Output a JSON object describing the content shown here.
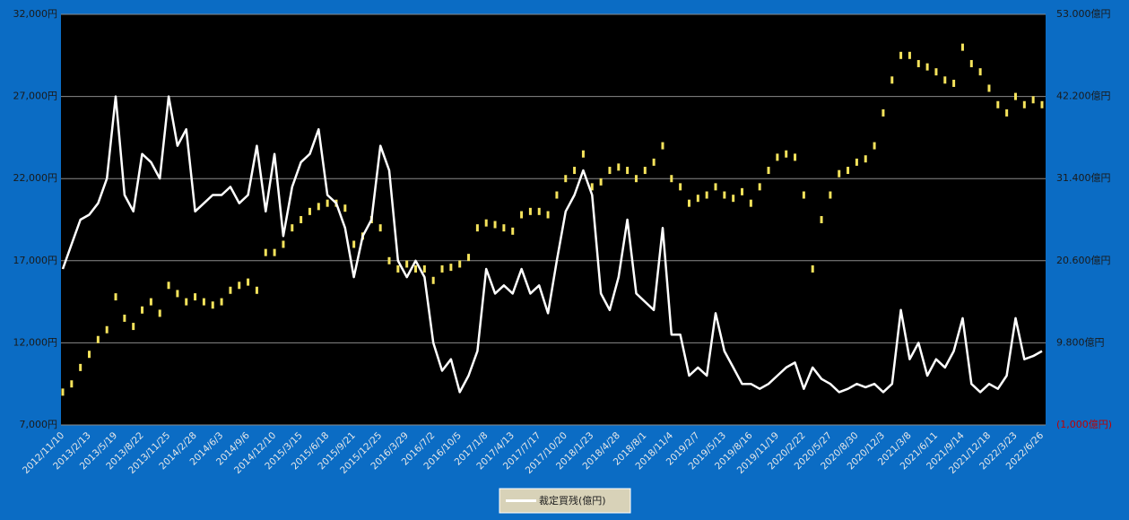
{
  "chart_data": {
    "type": "combo",
    "categories": [
      "2012/11/10",
      null,
      null,
      "2013/2/13",
      null,
      null,
      "2013/5/19",
      null,
      null,
      "2013/8/22",
      null,
      null,
      "2013/11/25",
      null,
      null,
      "2014/2/28",
      null,
      null,
      "2014/6/3",
      null,
      null,
      "2014/9/6",
      null,
      null,
      "2014/12/10",
      null,
      null,
      "2015/3/15",
      null,
      null,
      "2015/6/18",
      null,
      null,
      "2015/9/21",
      null,
      null,
      "2015/12/25",
      null,
      null,
      "2016/3/29",
      null,
      null,
      "2016/7/2",
      null,
      null,
      "2016/10/5",
      null,
      null,
      "2017/1/8",
      null,
      null,
      "2017/4/13",
      null,
      null,
      "2017/7/17",
      null,
      null,
      "2017/10/20",
      null,
      null,
      "2018/1/23",
      null,
      null,
      "2018/4/28",
      null,
      null,
      "2018/8/1",
      null,
      null,
      "2018/11/4",
      null,
      null,
      "2019/2/7",
      null,
      null,
      "2019/5/13",
      null,
      null,
      "2019/8/16",
      null,
      null,
      "2019/11/19",
      null,
      null,
      "2020/2/22",
      null,
      null,
      "2020/5/27",
      null,
      null,
      "2020/8/30",
      null,
      null,
      "2020/12/3",
      null,
      null,
      "2021/3/8",
      null,
      null,
      "2021/6/11",
      null,
      null,
      "2021/9/14",
      null,
      null,
      "2021/12/18",
      null,
      null,
      "2022/3/23",
      null,
      null,
      "2022/6/26"
    ],
    "series": [
      {
        "type": "marker",
        "color": "#f5e35c",
        "values": [
          9000,
          9500,
          10500,
          11300,
          12200,
          12800,
          14800,
          13500,
          13000,
          14000,
          14500,
          13800,
          15500,
          15000,
          14500,
          14800,
          14500,
          14300,
          14500,
          15200,
          15500,
          15700,
          15200,
          17500,
          17500,
          18000,
          19000,
          19500,
          20000,
          20300,
          20500,
          20500,
          20200,
          18000,
          18500,
          19500,
          19000,
          17000,
          16500,
          16800,
          16500,
          16500,
          15800,
          16500,
          16600,
          16800,
          17200,
          19000,
          19300,
          19200,
          19000,
          18800,
          19800,
          20000,
          20000,
          19800,
          21000,
          22000,
          22500,
          23500,
          21500,
          21800,
          22500,
          22700,
          22500,
          22000,
          22500,
          23000,
          24000,
          22000,
          21500,
          20500,
          20800,
          21000,
          21500,
          21000,
          20800,
          21200,
          20500,
          21500,
          22500,
          23300,
          23500,
          23300,
          21000,
          16500,
          19500,
          21000,
          22300,
          22500,
          23000,
          23200,
          24000,
          26000,
          28000,
          29500,
          29500,
          29000,
          28800,
          28500,
          28000,
          27800,
          30000,
          29000,
          28500,
          27500,
          26500,
          26000,
          27000,
          26500,
          26800,
          26500
        ]
      },
      {
        "type": "line",
        "name": "裁定買残(億円)",
        "color": "#ffffff",
        "axis": "y2",
        "values": [
          19520,
          22760,
          26000,
          26648,
          28160,
          31400,
          42200,
          29240,
          27080,
          34640,
          33560,
          31400,
          42200,
          35720,
          37880,
          27080,
          28160,
          29240,
          29240,
          30320,
          28160,
          29240,
          35720,
          27080,
          34640,
          23840,
          30320,
          33560,
          34640,
          37880,
          29240,
          28160,
          24920,
          18440,
          23840,
          26000,
          35720,
          32480,
          20600,
          18440,
          20600,
          18440,
          9800,
          6128,
          7640,
          3320,
          5480,
          8720,
          19520,
          16280,
          17360,
          16280,
          19520,
          16280,
          17360,
          13688,
          20600,
          27080,
          29240,
          32480,
          29240,
          16280,
          14120,
          18440,
          26000,
          16280,
          15200,
          14120,
          24920,
          10880,
          10880,
          5480,
          6560,
          5480,
          13688,
          8720,
          6560,
          4400,
          4400,
          3752,
          4400,
          5480,
          6560,
          7208,
          3752,
          6560,
          5048,
          4400,
          3320,
          3752,
          4400,
          3968,
          4400,
          3320,
          4400,
          14120,
          7640,
          9800,
          5480,
          7640,
          6560,
          8720,
          13040,
          4400,
          3320,
          4400,
          3752,
          5480,
          13040,
          7640,
          8072,
          8720
        ]
      }
    ],
    "ylim": [
      7000,
      32000
    ],
    "yticks": [
      {
        "value": 7000,
        "label": "7,000円"
      },
      {
        "value": 12000,
        "label": "12,000円"
      },
      {
        "value": 17000,
        "label": "17,000円"
      },
      {
        "value": 22000,
        "label": "22,000円"
      },
      {
        "value": 27000,
        "label": "27,000円"
      },
      {
        "value": 32000,
        "label": "32,000円"
      }
    ],
    "y2lim": [
      -1000,
      53000
    ],
    "y2ticks": [
      {
        "value": -1000,
        "label": "(1,000億円)"
      },
      {
        "value": 9800,
        "label": "9.800億円"
      },
      {
        "value": 20600,
        "label": "20.600億円"
      },
      {
        "value": 31400,
        "label": "31.400億円"
      },
      {
        "value": 42200,
        "label": "42.200億円"
      },
      {
        "value": 53000,
        "label": "53.000億円"
      }
    ],
    "grid": true
  }
}
